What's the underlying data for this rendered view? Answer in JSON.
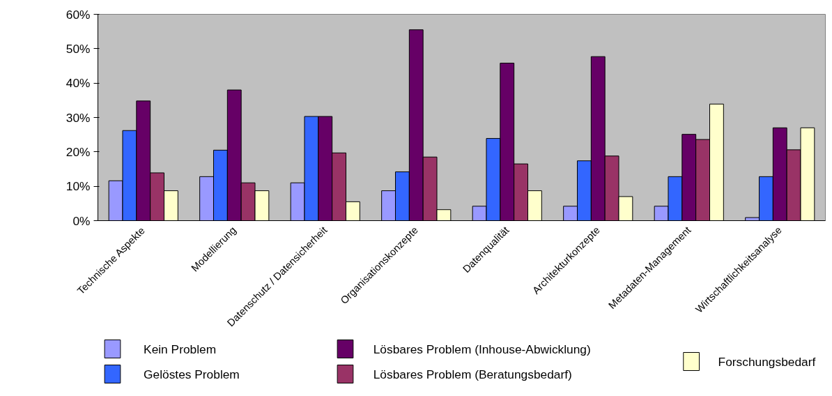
{
  "chart_data": {
    "type": "bar",
    "categories": [
      "Technische Aspekte",
      "Modellierung",
      "Datenschutz / Datensicherheit",
      "Organisationskonzepte",
      "Datenqualität",
      "Architekturkonzepte",
      "Metadaten-Management",
      "Wirtschaftlichkeitsanalyse"
    ],
    "series": [
      {
        "name": "Kein Problem",
        "color": "#9999ff",
        "values": [
          11.6,
          12.8,
          11.0,
          8.7,
          4.2,
          4.2,
          4.2,
          0.9
        ]
      },
      {
        "name": "Gelöstes Problem",
        "color": "#3366ff",
        "values": [
          26.2,
          20.5,
          30.3,
          14.2,
          23.9,
          17.4,
          12.8,
          12.8
        ]
      },
      {
        "name": "Lösbares Problem (Inhouse-Abwicklung)",
        "color": "#660066",
        "values": [
          34.8,
          38.0,
          30.3,
          55.5,
          45.8,
          47.7,
          25.1,
          27.0
        ]
      },
      {
        "name": "Lösbares Problem (Beratungsbedarf)",
        "color": "#993366",
        "values": [
          13.9,
          11.0,
          19.7,
          18.5,
          16.5,
          18.8,
          23.6,
          20.6
        ]
      },
      {
        "name": "Forschungsbedarf",
        "color": "#ffffcc",
        "values": [
          8.7,
          8.7,
          5.5,
          3.2,
          8.7,
          7.0,
          33.9,
          27.0
        ]
      }
    ],
    "ylim": [
      0,
      60
    ],
    "yticks": [
      {
        "value": 0,
        "label": "0%"
      },
      {
        "value": 10,
        "label": "10%"
      },
      {
        "value": 20,
        "label": "20%"
      },
      {
        "value": 30,
        "label": "30%"
      },
      {
        "value": 40,
        "label": "40%"
      },
      {
        "value": 50,
        "label": "50%"
      },
      {
        "value": 60,
        "label": "60%"
      }
    ],
    "grid": false,
    "legend": "bottom"
  }
}
